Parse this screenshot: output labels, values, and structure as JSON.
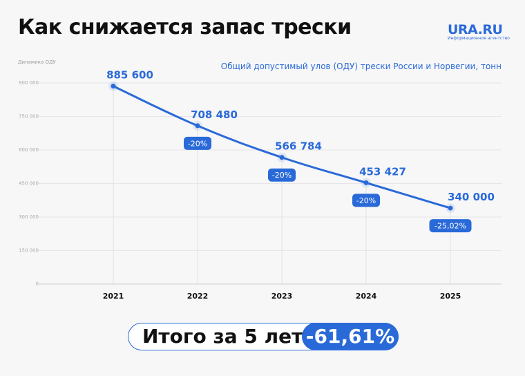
{
  "header": {
    "title": "Как снижается запас трески",
    "logo": "URA.RU",
    "logo_tagline": "Информационное агентство"
  },
  "chart_data": {
    "type": "line",
    "title": "Общий допустимый улов (ОДУ) трески России и Норвегии, тонн",
    "ylabel": "Динамика ОДУ",
    "xlabel": "",
    "categories": [
      "2021",
      "2022",
      "2023",
      "2024",
      "2025"
    ],
    "values": [
      885600,
      708480,
      566784,
      453427,
      340000
    ],
    "value_labels": [
      "885 600",
      "708 480",
      "566 784",
      "453 427",
      "340 000"
    ],
    "change_labels": [
      "",
      "-20%",
      "-20%",
      "-20%",
      "-25,02%"
    ],
    "ylim": [
      0,
      900000
    ],
    "yticks": [
      0,
      150000,
      300000,
      450000,
      600000,
      750000,
      900000
    ],
    "ytick_labels": [
      "0",
      "150 000",
      "300 000",
      "450 000",
      "600 000",
      "750 000",
      "900 000"
    ],
    "grid": true,
    "color": "#2a6ad8"
  },
  "summary": {
    "label": "Итого за 5 лет",
    "value": "-61,61%"
  }
}
